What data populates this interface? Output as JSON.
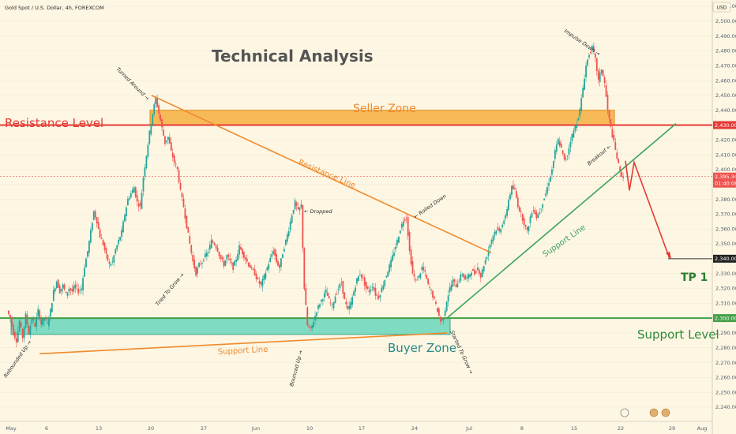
{
  "header": {
    "symbol_title": "Gold Spot / U.S. Dollar, 4h, FOREXCOM",
    "currency_badge": "USD"
  },
  "title_text": "Technical Analysis",
  "labels": {
    "resistance_level": "Resistance Level",
    "support_level": "Support Level",
    "seller_zone": "Seller Zone",
    "buyer_zone": "Buyer Zone",
    "resistance_line": "Resistance Line",
    "support_line_lower": "Support Line",
    "support_line_upper": "Support Line",
    "tp1": "TP 1"
  },
  "annotations": [
    {
      "text": "Turned Around →"
    },
    {
      "text": "← Dropped"
    },
    {
      "text": "← Rolled Down"
    },
    {
      "text": "Impulse Down →"
    },
    {
      "text": "Breakout ←"
    },
    {
      "text": "Tried To Grow →"
    },
    {
      "text": "Rebounded Up →"
    },
    {
      "text": "Bounced Up →"
    },
    {
      "text": "Started To Grow →"
    }
  ],
  "price_badges": {
    "resistance": "2,430.00",
    "current_price": "2,395.34",
    "countdown": "01:40:08",
    "target": "2,340.00",
    "support": "2,300.00"
  },
  "colors": {
    "background": "#fdf6e3",
    "resistance_red": "#e53935",
    "support_green": "#43a047",
    "seller_zone_fill": "#f4a62a",
    "buyer_zone_fill": "#5fd4b8",
    "trendline_orange": "#f08a2c",
    "trendline_green": "#3da35d",
    "bull_candle": "#26a69a",
    "bear_candle": "#ef5350",
    "title_color": "#555555",
    "label_orange": "#f08a2c",
    "label_teal": "#2a8a8a",
    "tp_green": "#2e7d32"
  },
  "chart_data": {
    "type": "candlestick",
    "title": "Gold Spot / U.S. Dollar, 4h, FOREXCOM",
    "ylim": [
      2234,
      2517
    ],
    "y_ticks": [
      2240,
      2250,
      2260,
      2270,
      2280,
      2290,
      2300,
      2310,
      2320,
      2330,
      2340,
      2350,
      2360,
      2370,
      2380,
      2390,
      2400,
      2410,
      2420,
      2430,
      2440,
      2450,
      2460,
      2470,
      2480,
      2490,
      2500,
      2510
    ],
    "x_ticks": [
      "May",
      "6",
      "13",
      "20",
      "27",
      "Jun",
      "10",
      "17",
      "24",
      "Jul",
      "8",
      "15",
      "22",
      "29",
      "Aug"
    ],
    "levels": {
      "resistance_level": 2430,
      "support_level": 2300,
      "current_price": 2395.34,
      "target_tp1": 2340
    },
    "zones": {
      "seller_zone": [
        2430,
        2440
      ],
      "buyer_zone": [
        2289,
        2300
      ]
    },
    "price_path": [
      [
        0,
        2305
      ],
      [
        4,
        2300
      ],
      [
        8,
        2290
      ],
      [
        12,
        2285
      ],
      [
        16,
        2298
      ],
      [
        20,
        2287
      ],
      [
        24,
        2302
      ],
      [
        28,
        2290
      ],
      [
        32,
        2300
      ],
      [
        36,
        2295
      ],
      [
        40,
        2305
      ],
      [
        44,
        2296
      ],
      [
        48,
        2300
      ],
      [
        52,
        2296
      ],
      [
        56,
        2305
      ],
      [
        60,
        2318
      ],
      [
        64,
        2325
      ],
      [
        68,
        2318
      ],
      [
        72,
        2322
      ],
      [
        76,
        2316
      ],
      [
        80,
        2320
      ],
      [
        84,
        2318
      ],
      [
        88,
        2322
      ],
      [
        92,
        2318
      ],
      [
        96,
        2320
      ],
      [
        100,
        2335
      ],
      [
        104,
        2345
      ],
      [
        108,
        2358
      ],
      [
        112,
        2372
      ],
      [
        116,
        2365
      ],
      [
        120,
        2355
      ],
      [
        124,
        2350
      ],
      [
        128,
        2342
      ],
      [
        132,
        2336
      ],
      [
        136,
        2338
      ],
      [
        140,
        2346
      ],
      [
        144,
        2352
      ],
      [
        148,
        2358
      ],
      [
        152,
        2370
      ],
      [
        156,
        2380
      ],
      [
        160,
        2384
      ],
      [
        164,
        2388
      ],
      [
        168,
        2378
      ],
      [
        172,
        2375
      ],
      [
        176,
        2395
      ],
      [
        180,
        2410
      ],
      [
        184,
        2425
      ],
      [
        188,
        2438
      ],
      [
        192,
        2448
      ],
      [
        196,
        2438
      ],
      [
        200,
        2428
      ],
      [
        204,
        2418
      ],
      [
        208,
        2422
      ],
      [
        212,
        2412
      ],
      [
        216,
        2405
      ],
      [
        220,
        2400
      ],
      [
        224,
        2385
      ],
      [
        228,
        2375
      ],
      [
        232,
        2362
      ],
      [
        236,
        2350
      ],
      [
        240,
        2338
      ],
      [
        244,
        2330
      ],
      [
        248,
        2336
      ],
      [
        252,
        2338
      ],
      [
        256,
        2342
      ],
      [
        260,
        2345
      ],
      [
        264,
        2352
      ],
      [
        268,
        2350
      ],
      [
        272,
        2346
      ],
      [
        276,
        2340
      ],
      [
        280,
        2336
      ],
      [
        284,
        2342
      ],
      [
        288,
        2338
      ],
      [
        292,
        2334
      ],
      [
        296,
        2340
      ],
      [
        300,
        2348
      ],
      [
        304,
        2344
      ],
      [
        308,
        2340
      ],
      [
        312,
        2336
      ],
      [
        316,
        2333
      ],
      [
        320,
        2330
      ],
      [
        324,
        2325
      ],
      [
        328,
        2322
      ],
      [
        332,
        2328
      ],
      [
        336,
        2334
      ],
      [
        340,
        2340
      ],
      [
        344,
        2346
      ],
      [
        348,
        2338
      ],
      [
        352,
        2334
      ],
      [
        356,
        2344
      ],
      [
        360,
        2352
      ],
      [
        364,
        2360
      ],
      [
        368,
        2370
      ],
      [
        372,
        2378
      ],
      [
        376,
        2372
      ],
      [
        380,
        2376
      ],
      [
        384,
        2320
      ],
      [
        388,
        2295
      ],
      [
        392,
        2292
      ],
      [
        396,
        2298
      ],
      [
        400,
        2305
      ],
      [
        404,
        2310
      ],
      [
        408,
        2314
      ],
      [
        412,
        2318
      ],
      [
        416,
        2312
      ],
      [
        420,
        2308
      ],
      [
        424,
        2315
      ],
      [
        428,
        2320
      ],
      [
        432,
        2324
      ],
      [
        436,
        2312
      ],
      [
        440,
        2305
      ],
      [
        444,
        2310
      ],
      [
        448,
        2318
      ],
      [
        452,
        2326
      ],
      [
        456,
        2330
      ],
      [
        460,
        2326
      ],
      [
        464,
        2320
      ],
      [
        468,
        2318
      ],
      [
        472,
        2322
      ],
      [
        476,
        2316
      ],
      [
        480,
        2314
      ],
      [
        484,
        2320
      ],
      [
        488,
        2326
      ],
      [
        492,
        2332
      ],
      [
        496,
        2338
      ],
      [
        500,
        2345
      ],
      [
        504,
        2352
      ],
      [
        508,
        2360
      ],
      [
        512,
        2366
      ],
      [
        516,
        2368
      ],
      [
        520,
        2345
      ],
      [
        524,
        2330
      ],
      [
        528,
        2325
      ],
      [
        532,
        2328
      ],
      [
        536,
        2334
      ],
      [
        540,
        2330
      ],
      [
        544,
        2322
      ],
      [
        548,
        2318
      ],
      [
        552,
        2312
      ],
      [
        556,
        2305
      ],
      [
        560,
        2298
      ],
      [
        564,
        2300
      ],
      [
        568,
        2312
      ],
      [
        572,
        2320
      ],
      [
        576,
        2325
      ],
      [
        580,
        2322
      ],
      [
        584,
        2326
      ],
      [
        588,
        2330
      ],
      [
        592,
        2326
      ],
      [
        596,
        2328
      ],
      [
        600,
        2332
      ],
      [
        604,
        2330
      ],
      [
        608,
        2334
      ],
      [
        612,
        2328
      ],
      [
        616,
        2336
      ],
      [
        620,
        2342
      ],
      [
        624,
        2350
      ],
      [
        628,
        2356
      ],
      [
        632,
        2360
      ],
      [
        636,
        2358
      ],
      [
        640,
        2364
      ],
      [
        644,
        2368
      ],
      [
        648,
        2380
      ],
      [
        652,
        2388
      ],
      [
        656,
        2386
      ],
      [
        660,
        2376
      ],
      [
        664,
        2370
      ],
      [
        668,
        2364
      ],
      [
        672,
        2358
      ],
      [
        676,
        2368
      ],
      [
        680,
        2374
      ],
      [
        684,
        2368
      ],
      [
        688,
        2372
      ],
      [
        692,
        2378
      ],
      [
        696,
        2384
      ],
      [
        700,
        2392
      ],
      [
        704,
        2400
      ],
      [
        708,
        2412
      ],
      [
        712,
        2420
      ],
      [
        716,
        2414
      ],
      [
        720,
        2406
      ],
      [
        724,
        2410
      ],
      [
        728,
        2420
      ],
      [
        732,
        2426
      ],
      [
        736,
        2432
      ],
      [
        740,
        2440
      ],
      [
        744,
        2455
      ],
      [
        748,
        2470
      ],
      [
        752,
        2478
      ],
      [
        756,
        2482
      ],
      [
        760,
        2474
      ],
      [
        764,
        2460
      ],
      [
        768,
        2468
      ],
      [
        772,
        2458
      ],
      [
        776,
        2440
      ],
      [
        780,
        2428
      ],
      [
        784,
        2418
      ],
      [
        788,
        2408
      ],
      [
        792,
        2398
      ],
      [
        796,
        2395
      ]
    ],
    "projection": [
      [
        796,
        2395
      ],
      [
        802,
        2405
      ],
      [
        848,
        2340
      ]
    ]
  }
}
